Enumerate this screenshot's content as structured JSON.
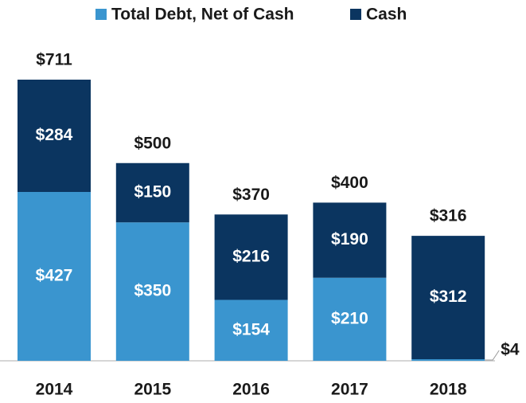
{
  "chart_data": {
    "type": "stacked_bar",
    "categories": [
      "2014",
      "2015",
      "2016",
      "2017",
      "2018"
    ],
    "series": [
      {
        "name": "Total Debt, Net of Cash",
        "color": "#3a95cf",
        "values": [
          427,
          350,
          154,
          210,
          4
        ],
        "value_labels": [
          "$427",
          "$350",
          "$154",
          "$210",
          "$4"
        ]
      },
      {
        "name": "Cash",
        "color": "#0b3560",
        "values": [
          284,
          150,
          216,
          190,
          312
        ],
        "value_labels": [
          "$284",
          "$150",
          "$216",
          "$190",
          "$312"
        ]
      }
    ],
    "totals": [
      711,
      500,
      370,
      400,
      316
    ],
    "total_labels": [
      "$711",
      "$500",
      "$370",
      "$400",
      "$316"
    ],
    "legend": "top"
  }
}
